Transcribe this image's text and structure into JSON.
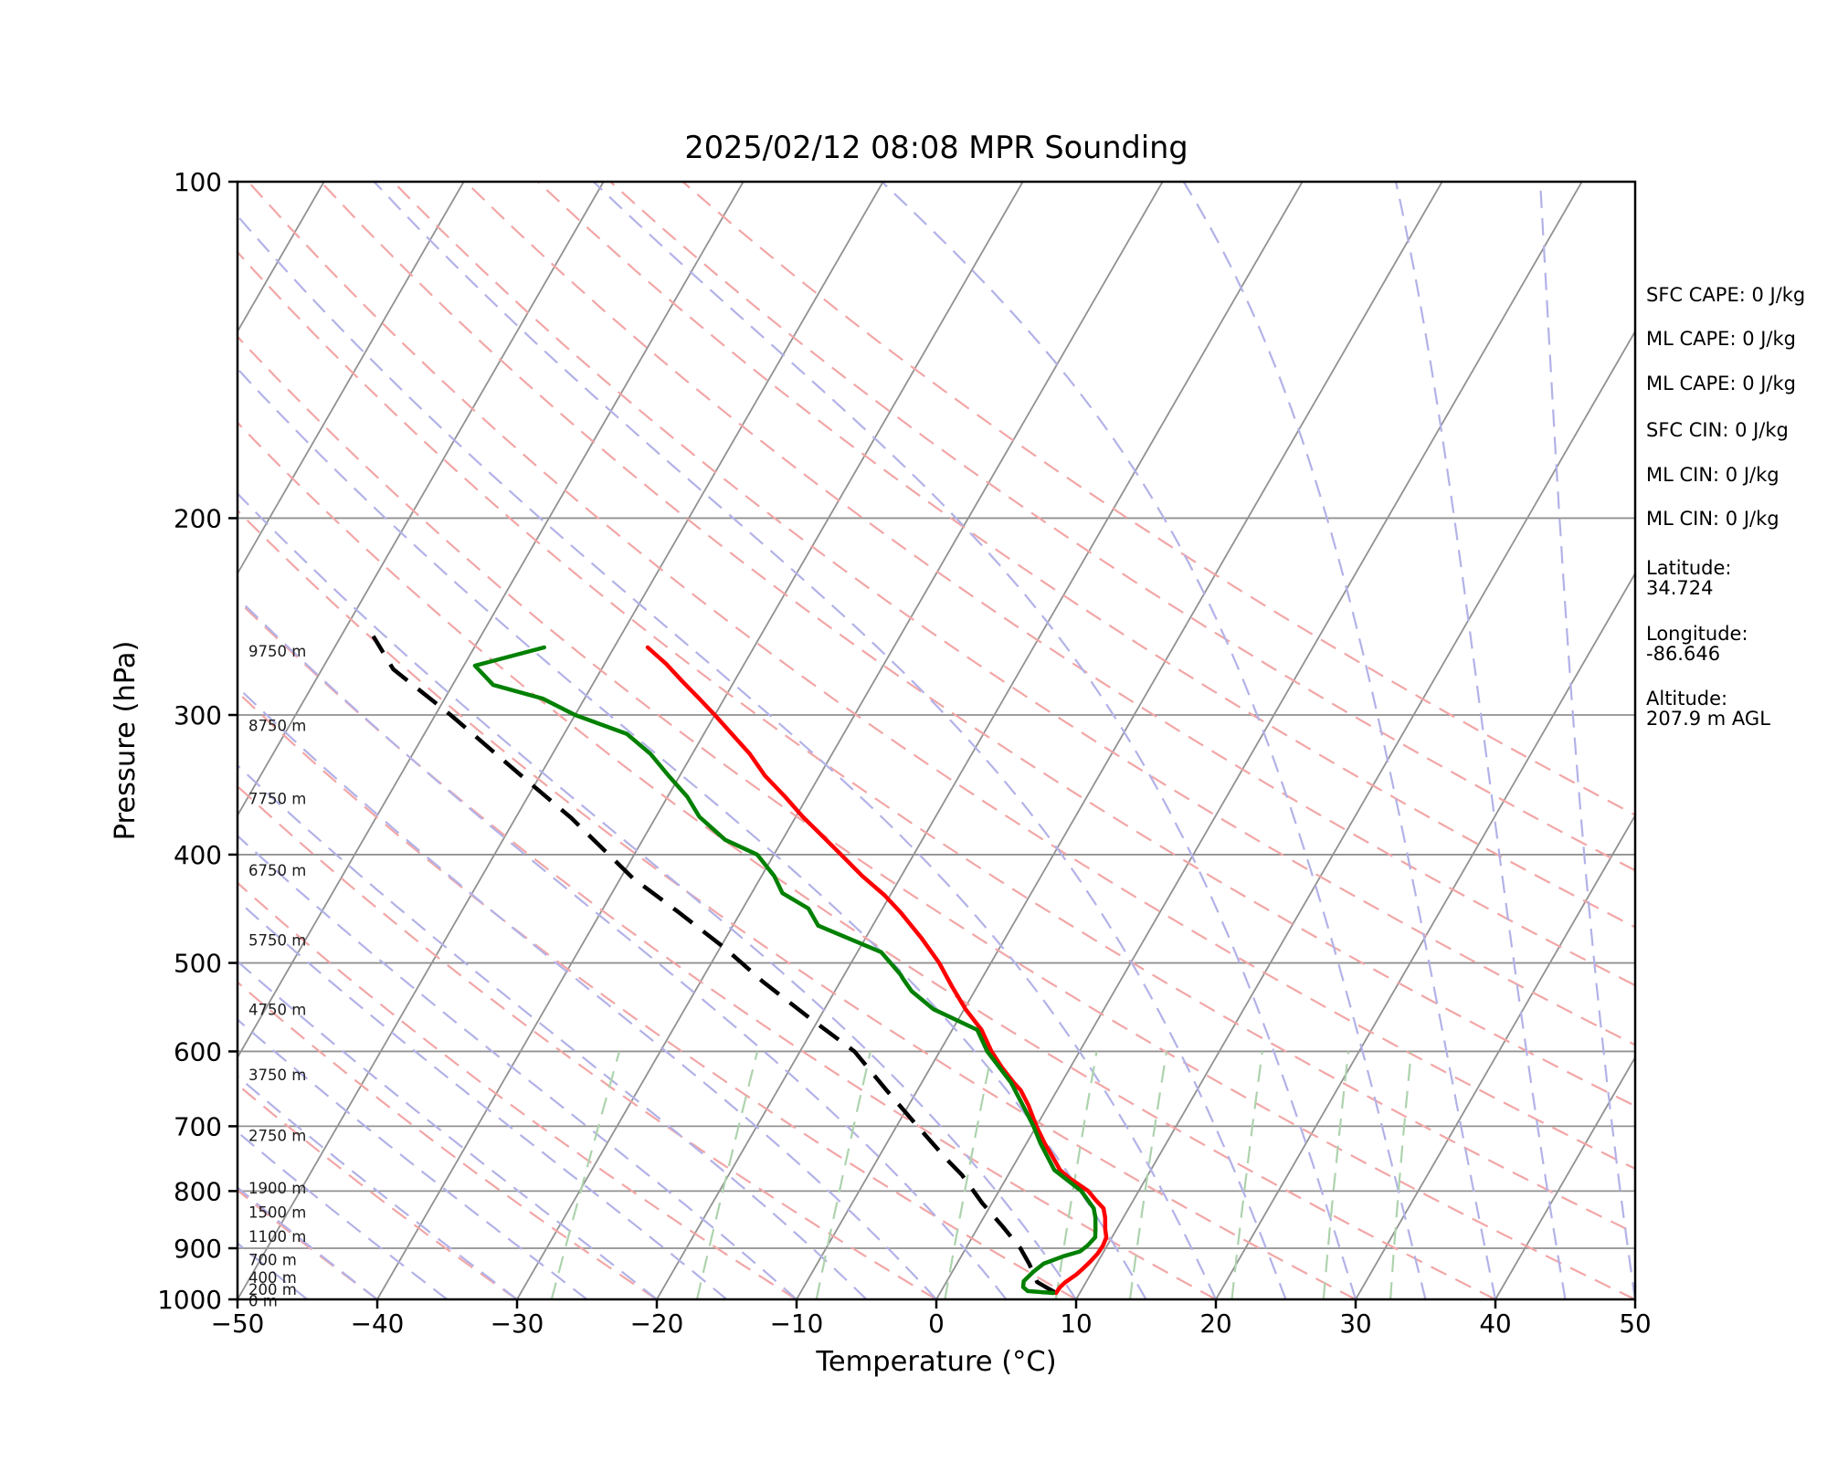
{
  "title": "2025/02/12 08:08 MPR Sounding",
  "axes": {
    "xlabel": "Temperature (°C)",
    "ylabel": "Pressure (hPa)",
    "xlim": [
      -50,
      50
    ],
    "plim": [
      100,
      1000
    ],
    "skew_rotation_deg": 30,
    "x_tick_labels": [
      "−50",
      "−40",
      "−30",
      "−20",
      "−10",
      "0",
      "10",
      "20",
      "30",
      "40",
      "50"
    ],
    "x_tick_values": [
      -50,
      -40,
      -30,
      -20,
      -10,
      0,
      10,
      20,
      30,
      40,
      50
    ],
    "p_tick_labels": [
      "100",
      "200",
      "300",
      "400",
      "500",
      "600",
      "700",
      "800",
      "900",
      "1000"
    ],
    "p_tick_values": [
      100,
      200,
      300,
      400,
      500,
      600,
      700,
      800,
      900,
      1000
    ]
  },
  "height_labels": [
    {
      "label": "0 m",
      "pressure": 988
    },
    {
      "label": "200 m",
      "pressure": 965
    },
    {
      "label": "400 m",
      "pressure": 942
    },
    {
      "label": "700 m",
      "pressure": 908
    },
    {
      "label": "1100 m",
      "pressure": 865
    },
    {
      "label": "1500 m",
      "pressure": 823
    },
    {
      "label": "1900 m",
      "pressure": 783
    },
    {
      "label": "2750 m",
      "pressure": 703
    },
    {
      "label": "3750 m",
      "pressure": 620
    },
    {
      "label": "4750 m",
      "pressure": 542
    },
    {
      "label": "5750 m",
      "pressure": 470
    },
    {
      "label": "6750 m",
      "pressure": 407
    },
    {
      "label": "7750 m",
      "pressure": 351
    },
    {
      "label": "8750 m",
      "pressure": 302
    },
    {
      "label": "9750 m",
      "pressure": 259
    }
  ],
  "annotations": [
    {
      "lines": [
        "SFC CAPE: 0 J/kg"
      ]
    },
    {
      "lines": [
        "ML CAPE: 0 J/kg"
      ]
    },
    {
      "lines": [
        "ML CAPE: 0 J/kg"
      ]
    },
    {
      "lines": [
        "SFC CIN: 0 J/kg"
      ]
    },
    {
      "lines": [
        "ML CIN: 0 J/kg"
      ]
    },
    {
      "lines": [
        "ML CIN: 0 J/kg"
      ]
    },
    {
      "lines": [
        "Latitude:",
        "34.724"
      ]
    },
    {
      "lines": [
        "Longitude:",
        "-86.646"
      ]
    },
    {
      "lines": [
        "Altitude:",
        "207.9 m AGL"
      ]
    }
  ],
  "chart_data": {
    "type": "skewt",
    "pressure_unit": "hPa",
    "temperature_unit": "°C",
    "temperature_profile": [
      [
        987,
        8.3
      ],
      [
        975,
        8.35
      ],
      [
        966,
        8.5
      ],
      [
        950,
        9.0
      ],
      [
        940,
        9.2
      ],
      [
        925,
        9.45
      ],
      [
        910,
        9.65
      ],
      [
        895,
        9.7
      ],
      [
        880,
        9.6
      ],
      [
        866,
        9.2
      ],
      [
        845,
        8.7
      ],
      [
        829,
        8.2
      ],
      [
        815,
        7.3
      ],
      [
        800,
        6.4
      ],
      [
        780,
        4.6
      ],
      [
        766,
        3.5
      ],
      [
        745,
        2.4
      ],
      [
        725,
        1.3
      ],
      [
        700,
        0.0
      ],
      [
        671,
        -1.4
      ],
      [
        650,
        -2.6
      ],
      [
        640,
        -3.4
      ],
      [
        620,
        -4.9
      ],
      [
        600,
        -6.3
      ],
      [
        574,
        -7.9
      ],
      [
        550,
        -9.9
      ],
      [
        525,
        -11.8
      ],
      [
        500,
        -13.7
      ],
      [
        475,
        -16.0
      ],
      [
        451,
        -18.5
      ],
      [
        435,
        -20.4
      ],
      [
        418,
        -22.8
      ],
      [
        400,
        -25.2
      ],
      [
        385,
        -27.3
      ],
      [
        370,
        -29.5
      ],
      [
        355,
        -31.6
      ],
      [
        340,
        -33.9
      ],
      [
        325,
        -35.9
      ],
      [
        312,
        -38.0
      ],
      [
        300,
        -40.0
      ],
      [
        290,
        -41.8
      ],
      [
        280,
        -43.7
      ],
      [
        270,
        -45.6
      ],
      [
        261,
        -47.6
      ]
    ],
    "dewpoint_profile": [
      [
        987,
        8.1
      ],
      [
        983,
        6.2
      ],
      [
        975,
        5.7
      ],
      [
        963,
        5.5
      ],
      [
        945,
        5.8
      ],
      [
        929,
        6.2
      ],
      [
        915,
        7.3
      ],
      [
        906,
        8.3
      ],
      [
        895,
        8.6
      ],
      [
        880,
        8.8
      ],
      [
        866,
        8.5
      ],
      [
        845,
        8.0
      ],
      [
        829,
        7.5
      ],
      [
        800,
        5.9
      ],
      [
        766,
        3.1
      ],
      [
        725,
        1.0
      ],
      [
        700,
        -0.2
      ],
      [
        671,
        -1.8
      ],
      [
        640,
        -3.6
      ],
      [
        600,
        -6.6
      ],
      [
        574,
        -8.2
      ],
      [
        550,
        -12.2
      ],
      [
        530,
        -14.5
      ],
      [
        517,
        -15.6
      ],
      [
        512,
        -16.0
      ],
      [
        489,
        -18.3
      ],
      [
        463,
        -23.9
      ],
      [
        447,
        -25.3
      ],
      [
        433,
        -27.8
      ],
      [
        418,
        -29.1
      ],
      [
        400,
        -31.2
      ],
      [
        388,
        -34.1
      ],
      [
        370,
        -36.9
      ],
      [
        355,
        -38.6
      ],
      [
        340,
        -40.8
      ],
      [
        325,
        -43.0
      ],
      [
        312,
        -45.5
      ],
      [
        300,
        -50.0
      ],
      [
        290,
        -53.0
      ],
      [
        282,
        -57.1
      ],
      [
        271,
        -59.2
      ],
      [
        261,
        -55.0
      ]
    ],
    "parcel_profile": [
      [
        987,
        8.3
      ],
      [
        965,
        6.5
      ],
      [
        930,
        5.2
      ],
      [
        900,
        3.9
      ],
      [
        860,
        1.7
      ],
      [
        820,
        -0.7
      ],
      [
        774,
        -3.3
      ],
      [
        750,
        -5.0
      ],
      [
        700,
        -8.5
      ],
      [
        650,
        -12.2
      ],
      [
        600,
        -16.1
      ],
      [
        560,
        -20.7
      ],
      [
        520,
        -25.5
      ],
      [
        485,
        -29.65
      ],
      [
        450,
        -34.5
      ],
      [
        420,
        -39.1
      ],
      [
        371,
        -46.0
      ],
      [
        343,
        -50.8
      ],
      [
        300,
        -58.9
      ],
      [
        273,
        -64.9
      ],
      [
        255,
        -67.7
      ]
    ],
    "isotherms": {
      "start": -160,
      "end": 60,
      "step": 10,
      "color": "#919191"
    },
    "isobars": {
      "start": 200,
      "end": 900,
      "step": 100,
      "color": "#919191"
    },
    "dry_adiabats": {
      "start": -40,
      "end": 130,
      "step": 10,
      "color": "#f2a6a6"
    },
    "moist_adiabats": {
      "start": -55,
      "end": 60,
      "step": 5,
      "color": "#b2b2e8"
    },
    "mixing_ratio_lines": {
      "values": [
        0.4,
        1,
        2,
        4,
        7,
        10,
        16,
        24,
        32
      ],
      "p_range": [
        1000,
        600
      ],
      "color": "#add3ad"
    },
    "colors": {
      "temperature": "#ff0000",
      "dewpoint": "#008000",
      "parcel": "#000000"
    }
  }
}
